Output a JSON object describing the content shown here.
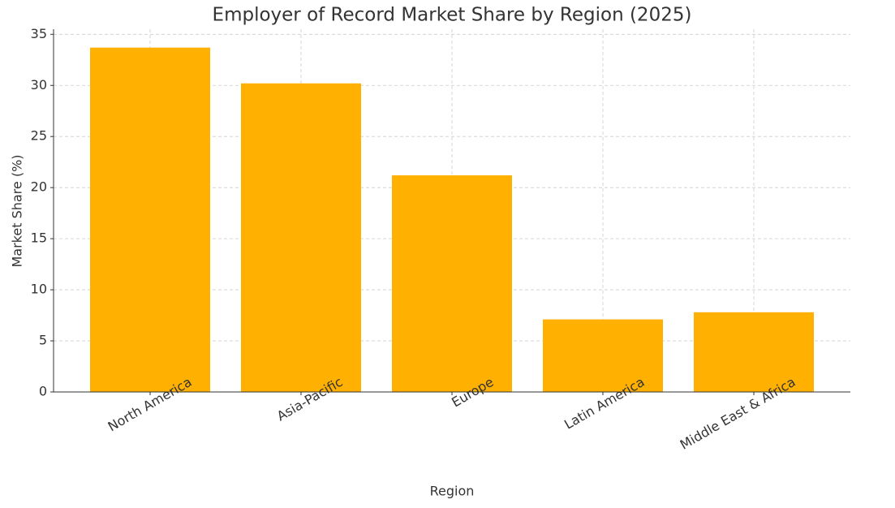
{
  "chart_data": {
    "type": "bar",
    "title": "Employer of Record Market Share by Region (2025)",
    "x_label": "Region",
    "y_label": "Market Share (%)",
    "categories": [
      "North America",
      "Asia-Pacific",
      "Europe",
      "Latin America",
      "Middle East & Africa"
    ],
    "values": [
      33.7,
      30.2,
      21.2,
      7.1,
      7.8
    ],
    "color": "#ffb000",
    "ylim": [
      0,
      35.5
    ],
    "yticks": [
      0,
      5,
      10,
      15,
      20,
      25,
      30,
      35
    ],
    "grid": true
  }
}
